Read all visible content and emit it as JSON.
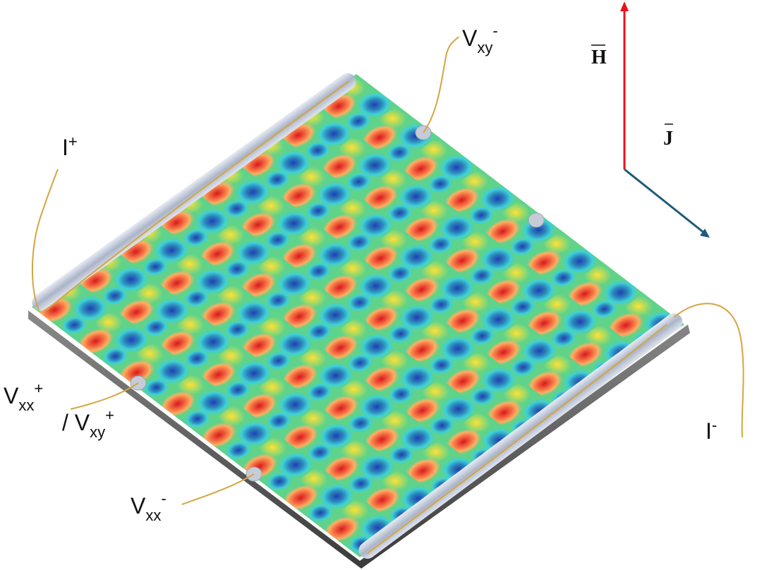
{
  "labels": {
    "vxy_minus": {
      "base": "V",
      "sub": "xy",
      "sup": "-"
    },
    "i_plus": {
      "base": "I",
      "sup": "+"
    },
    "vxx_plus": {
      "base": "V",
      "sub": "xx",
      "sup": "+"
    },
    "vxy_plus": {
      "base": "/ V",
      "sub": "xy",
      "sup": "+"
    },
    "vxx_minus": {
      "base": "V",
      "sub": "xx",
      "sup": "-"
    },
    "i_minus": {
      "base": "I",
      "sup": "-"
    }
  },
  "vectors": {
    "field": "H",
    "current": "J"
  }
}
